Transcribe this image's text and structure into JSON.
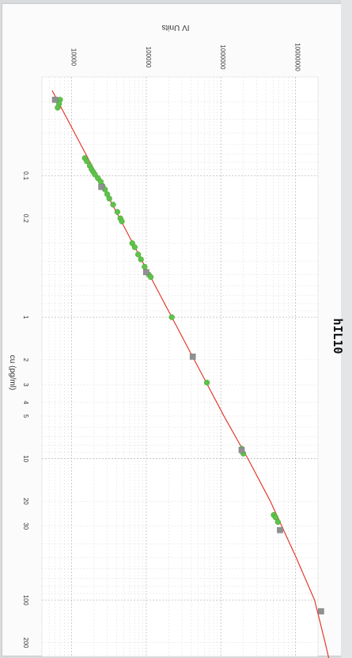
{
  "chart_data": {
    "type": "scatter",
    "title": "hIL10",
    "xlabel": "cu (pg/ml)",
    "ylabel": "IV Units",
    "x_scale": "log",
    "y_scale": "log",
    "xlim": [
      0.02,
      250
    ],
    "ylim": [
      4000,
      20000000
    ],
    "grid": true,
    "x_ticks": [
      0.1,
      0.2,
      1,
      2,
      3,
      4,
      5,
      10,
      20,
      30,
      100,
      200
    ],
    "x_tick_labels": [
      "0.1",
      "0.2",
      "1",
      "2",
      "3",
      "4",
      "5",
      "10",
      "20",
      "30",
      "100",
      "200"
    ],
    "y_ticks": [
      10000,
      100000,
      1000000,
      10000000
    ],
    "y_tick_labels": [
      "10000",
      "100000",
      "1000000",
      "10000000"
    ],
    "colors": {
      "fit": "#e23b2e",
      "samples": "#5fc24a",
      "standards": "#8f9191"
    },
    "series": [
      {
        "kind": "fit",
        "x": [
          0.025,
          0.05,
          0.1,
          0.2,
          0.5,
          1,
          2,
          5,
          10,
          20,
          50,
          100,
          200,
          260
        ],
        "y": [
          5500,
          11000,
          22000,
          44000,
          110000,
          220000,
          440000,
          1100000,
          2300000,
          4600000,
          10200000,
          18000000,
          25000000,
          28000000
        ]
      },
      {
        "kind": "samples",
        "x": [
          0.029,
          0.031,
          0.033,
          0.075,
          0.079,
          0.085,
          0.09,
          0.094,
          0.098,
          0.104,
          0.11,
          0.118,
          0.125,
          0.135,
          0.145,
          0.16,
          0.18,
          0.2,
          0.21,
          0.3,
          0.32,
          0.36,
          0.39,
          0.44,
          0.48,
          0.5,
          0.52,
          1.0,
          2.9,
          8.5,
          9.2,
          25,
          26,
          28
        ],
        "y": [
          7000,
          6800,
          6500,
          15000,
          16000,
          17500,
          18500,
          19500,
          20500,
          22500,
          24500,
          26000,
          28000,
          30000,
          32000,
          36000,
          41000,
          45000,
          47000,
          65000,
          70000,
          78000,
          85000,
          95000,
          100000,
          108000,
          115000,
          220000,
          650000,
          1900000,
          2000000,
          5100000,
          5400000,
          5800000
        ]
      },
      {
        "kind": "standards",
        "x": [
          0.029,
          0.12,
          0.48,
          1.9,
          8.7,
          32,
          120
        ],
        "y": [
          6000,
          25000,
          100000,
          420000,
          1900000,
          6200000,
          22000000
        ]
      }
    ]
  }
}
